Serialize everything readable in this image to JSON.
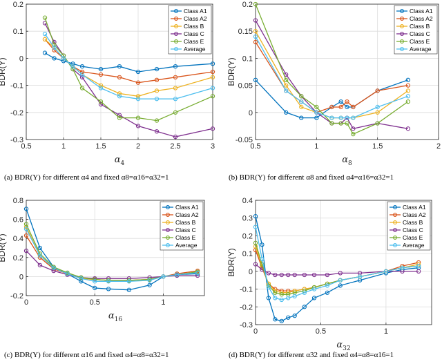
{
  "captions": [
    "(a) BDR(Y) for different α4 and fixed α8=α16=α32=1",
    "(b) BDR(Y) for different α8 and fixed α4=α16=α32=1",
    "(c) BDR(Y) for different α16 and fixed α4=α8=α32=1",
    "(d) BDR(Y) for different α32 and fixed α4=α8=α16=1"
  ],
  "chart_data": [
    {
      "type": "line",
      "title": "",
      "xlabel": "α4",
      "xlabel_main": "α",
      "xlabel_sub": "4",
      "ylabel": "BDR(Y)",
      "xlim": [
        0.5,
        3
      ],
      "ylim": [
        -0.3,
        0.2
      ],
      "xticks": [
        0.5,
        1,
        1.5,
        2,
        2.5,
        3
      ],
      "yticks": [
        -0.3,
        -0.2,
        -0.1,
        0,
        0.1,
        0.2
      ],
      "xtick_labels": [
        "0.5",
        "1",
        "1.5",
        "2",
        "2.5",
        "3"
      ],
      "ytick_labels": [
        "-0.3",
        "-0.2",
        "-0.1",
        "0",
        "0.1",
        "0.2"
      ],
      "grid": true,
      "legend_position": "top-right",
      "x": [
        0.75,
        0.875,
        1,
        1.125,
        1.25,
        1.5,
        1.75,
        2,
        2.25,
        2.5,
        3
      ],
      "series": [
        {
          "name": "Class A1",
          "color": "#0072BD",
          "values": [
            0.02,
            0.0,
            -0.01,
            -0.02,
            -0.03,
            -0.04,
            -0.03,
            -0.05,
            -0.04,
            -0.03,
            -0.02
          ]
        },
        {
          "name": "Class A2",
          "color": "#D95319",
          "values": [
            0.07,
            0.03,
            0.0,
            -0.03,
            -0.05,
            -0.06,
            -0.07,
            -0.09,
            -0.08,
            -0.07,
            -0.05
          ]
        },
        {
          "name": "Class B",
          "color": "#EDB120",
          "values": [
            0.07,
            0.04,
            0.0,
            -0.03,
            -0.06,
            -0.1,
            -0.13,
            -0.14,
            -0.12,
            -0.11,
            -0.07
          ]
        },
        {
          "name": "Class C",
          "color": "#7E2F8E",
          "values": [
            0.13,
            0.06,
            0.01,
            -0.04,
            -0.07,
            -0.17,
            -0.21,
            -0.25,
            -0.27,
            -0.29,
            -0.26
          ]
        },
        {
          "name": "Class E",
          "color": "#77AC30",
          "values": [
            0.15,
            0.05,
            0.01,
            -0.04,
            -0.11,
            -0.16,
            -0.22,
            -0.22,
            -0.23,
            -0.2,
            -0.14
          ]
        },
        {
          "name": "Average",
          "color": "#4DBEEE",
          "values": [
            0.09,
            0.04,
            0.0,
            -0.03,
            -0.06,
            -0.11,
            -0.14,
            -0.15,
            -0.15,
            -0.15,
            -0.11
          ]
        }
      ]
    },
    {
      "type": "line",
      "title": "",
      "xlabel": "α8",
      "xlabel_main": "α",
      "xlabel_sub": "8",
      "ylabel": "BDR(Y)",
      "xlim": [
        0.5,
        2
      ],
      "ylim": [
        -0.05,
        0.2
      ],
      "xticks": [
        0.5,
        1,
        1.5,
        2
      ],
      "yticks": [
        -0.05,
        0,
        0.05,
        0.1,
        0.15,
        0.2
      ],
      "xtick_labels": [
        "0.5",
        "1",
        "1.5",
        "2"
      ],
      "ytick_labels": [
        "-0.05",
        "0",
        "0.05",
        "0.1",
        "0.15",
        "0.2"
      ],
      "grid": true,
      "legend_position": "top-right",
      "x": [
        0.5,
        0.75,
        0.875,
        1,
        1.125,
        1.2,
        1.25,
        1.3,
        1.5,
        1.75
      ],
      "series": [
        {
          "name": "Class A1",
          "color": "#0072BD",
          "values": [
            0.06,
            0.0,
            -0.01,
            -0.01,
            0.01,
            0.02,
            0.01,
            0.01,
            0.04,
            0.06
          ]
        },
        {
          "name": "Class A2",
          "color": "#D95319",
          "values": [
            0.13,
            0.04,
            0.02,
            0.0,
            0.01,
            0.01,
            0.02,
            0.01,
            0.04,
            0.05
          ]
        },
        {
          "name": "Class B",
          "color": "#EDB120",
          "values": [
            0.15,
            0.05,
            0.01,
            0.0,
            -0.01,
            -0.01,
            -0.01,
            -0.01,
            0.0,
            0.04
          ]
        },
        {
          "name": "Class C",
          "color": "#7E2F8E",
          "values": [
            0.17,
            0.07,
            0.03,
            0.0,
            -0.02,
            -0.02,
            -0.01,
            -0.03,
            -0.02,
            -0.03
          ]
        },
        {
          "name": "Class E",
          "color": "#77AC30",
          "values": [
            0.2,
            0.06,
            0.03,
            0.01,
            -0.02,
            -0.02,
            -0.02,
            -0.04,
            -0.02,
            0.02
          ]
        },
        {
          "name": "Average",
          "color": "#4DBEEE",
          "values": [
            0.14,
            0.04,
            0.02,
            0.0,
            -0.01,
            -0.01,
            -0.01,
            -0.01,
            0.01,
            0.03
          ]
        }
      ]
    },
    {
      "type": "line",
      "title": "",
      "xlabel": "α16",
      "xlabel_main": "α",
      "xlabel_sub": "16",
      "ylabel": "BDR(Y)",
      "xlim": [
        0,
        1.3
      ],
      "ylim": [
        -0.2,
        0.8
      ],
      "xticks": [
        0,
        0.5,
        1
      ],
      "yticks": [
        -0.2,
        0,
        0.2,
        0.4,
        0.6,
        0.8
      ],
      "xtick_labels": [
        "0",
        "0.5",
        "1"
      ],
      "ytick_labels": [
        "-0.2",
        "0",
        "0.2",
        "0.4",
        "0.6",
        "0.8"
      ],
      "grid": true,
      "legend_position": "top-right",
      "x": [
        0,
        0.1,
        0.2,
        0.3,
        0.4,
        0.5,
        0.6,
        0.75,
        0.9,
        1.0,
        1.1,
        1.25
      ],
      "series": [
        {
          "name": "Class A1",
          "color": "#0072BD",
          "values": [
            0.71,
            0.3,
            0.1,
            0.03,
            -0.05,
            -0.12,
            -0.13,
            -0.14,
            -0.09,
            0.0,
            0.02,
            0.03
          ]
        },
        {
          "name": "Class A2",
          "color": "#D95319",
          "values": [
            0.43,
            0.2,
            0.08,
            0.03,
            -0.02,
            -0.03,
            -0.04,
            -0.04,
            -0.03,
            0.0,
            0.03,
            0.06
          ]
        },
        {
          "name": "Class B",
          "color": "#EDB120",
          "values": [
            0.52,
            0.22,
            0.09,
            0.03,
            -0.02,
            -0.03,
            -0.04,
            -0.04,
            -0.03,
            0.0,
            0.02,
            0.04
          ]
        },
        {
          "name": "Class C",
          "color": "#7E2F8E",
          "values": [
            0.27,
            0.12,
            0.06,
            0.02,
            -0.01,
            -0.02,
            -0.02,
            -0.02,
            -0.01,
            0.0,
            0.01,
            0.01
          ]
        },
        {
          "name": "Class E",
          "color": "#77AC30",
          "values": [
            0.55,
            0.24,
            0.1,
            0.04,
            -0.01,
            -0.03,
            -0.04,
            -0.04,
            -0.03,
            0.0,
            0.02,
            0.05
          ]
        },
        {
          "name": "Average",
          "color": "#4DBEEE",
          "values": [
            0.5,
            0.22,
            0.09,
            0.03,
            -0.02,
            -0.05,
            -0.05,
            -0.05,
            -0.04,
            0.0,
            0.02,
            0.04
          ]
        }
      ]
    },
    {
      "type": "line",
      "title": "",
      "xlabel": "α32",
      "xlabel_main": "α",
      "xlabel_sub": "32",
      "ylabel": "BDR(Y)",
      "xlim": [
        0,
        1.35
      ],
      "ylim": [
        -0.3,
        0.4
      ],
      "xticks": [
        0,
        0.5,
        1
      ],
      "yticks": [
        -0.3,
        -0.2,
        -0.1,
        0,
        0.1,
        0.2,
        0.3,
        0.4
      ],
      "xtick_labels": [
        "0",
        "0.5",
        "1"
      ],
      "ytick_labels": [
        "-0.3",
        "-0.2",
        "-0.1",
        "0",
        "0.1",
        "0.2",
        "0.3",
        "0.4"
      ],
      "grid": true,
      "legend_position": "top-right",
      "x": [
        0,
        0.05,
        0.1,
        0.15,
        0.2,
        0.25,
        0.3,
        0.375,
        0.45,
        0.55,
        0.65,
        0.8,
        1.0,
        1.125,
        1.25
      ],
      "series": [
        {
          "name": "Class A1",
          "color": "#0072BD",
          "values": [
            0.31,
            0.15,
            -0.15,
            -0.27,
            -0.28,
            -0.26,
            -0.25,
            -0.2,
            -0.15,
            -0.12,
            -0.08,
            -0.05,
            -0.01,
            0.01,
            0.02
          ]
        },
        {
          "name": "Class A2",
          "color": "#D95319",
          "values": [
            0.12,
            0.02,
            -0.07,
            -0.1,
            -0.11,
            -0.11,
            -0.11,
            -0.1,
            -0.09,
            -0.07,
            -0.05,
            -0.03,
            0.0,
            0.03,
            0.05
          ]
        },
        {
          "name": "Class B",
          "color": "#EDB120",
          "values": [
            0.14,
            0.03,
            -0.07,
            -0.11,
            -0.12,
            -0.12,
            -0.11,
            -0.1,
            -0.09,
            -0.07,
            -0.05,
            -0.03,
            0.0,
            0.02,
            0.04
          ]
        },
        {
          "name": "Class C",
          "color": "#7E2F8E",
          "values": [
            0.04,
            0.01,
            -0.01,
            -0.02,
            -0.02,
            -0.02,
            -0.02,
            -0.02,
            -0.02,
            -0.02,
            -0.01,
            -0.01,
            0.0,
            0.0,
            0.0
          ]
        },
        {
          "name": "Class E",
          "color": "#77AC30",
          "values": [
            0.16,
            0.04,
            -0.08,
            -0.12,
            -0.13,
            -0.13,
            -0.12,
            -0.11,
            -0.09,
            -0.07,
            -0.05,
            -0.03,
            0.0,
            0.02,
            0.03
          ]
        },
        {
          "name": "Average",
          "color": "#4DBEEE",
          "values": [
            0.25,
            0.07,
            -0.09,
            -0.15,
            -0.16,
            -0.15,
            -0.14,
            -0.12,
            -0.1,
            -0.08,
            -0.05,
            -0.03,
            0.0,
            0.02,
            0.03
          ]
        }
      ]
    }
  ]
}
